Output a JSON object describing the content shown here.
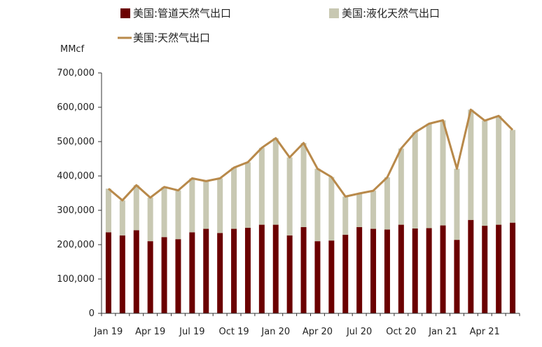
{
  "chart_data": {
    "type": "bar",
    "unit_label": "MMcf",
    "legend": [
      {
        "key": "pipeline",
        "label": "美国:管道天然气出口",
        "color": "#6b0000",
        "shape": "square"
      },
      {
        "key": "lng",
        "label": "美国:液化天然气出口",
        "color": "#c8c8b2",
        "shape": "square"
      },
      {
        "key": "total",
        "label": "美国:天然气出口",
        "color": "#b8894a",
        "shape": "line"
      }
    ],
    "legend_position": "top",
    "ylim": [
      0,
      700000
    ],
    "yticks": [
      "0",
      "100,000",
      "200,000",
      "300,000",
      "400,000",
      "500,000",
      "600,000",
      "700,000"
    ],
    "ytick_values": [
      0,
      100000,
      200000,
      300000,
      400000,
      500000,
      600000,
      700000
    ],
    "x": [
      "2019-01",
      "2019-02",
      "2019-03",
      "2019-04",
      "2019-05",
      "2019-06",
      "2019-07",
      "2019-08",
      "2019-09",
      "2019-10",
      "2019-11",
      "2019-12",
      "2020-01",
      "2020-02",
      "2020-03",
      "2020-04",
      "2020-05",
      "2020-06",
      "2020-07",
      "2020-08",
      "2020-09",
      "2020-10",
      "2020-11",
      "2020-12",
      "2021-01",
      "2021-02",
      "2021-03",
      "2021-04",
      "2021-05",
      "2021-06"
    ],
    "xtick_labels": [
      {
        "index": 0,
        "label": "Jan 19"
      },
      {
        "index": 3,
        "label": "Apr 19"
      },
      {
        "index": 6,
        "label": "Jul 19"
      },
      {
        "index": 9,
        "label": "Oct 19"
      },
      {
        "index": 12,
        "label": "Jan 20"
      },
      {
        "index": 15,
        "label": "Apr 20"
      },
      {
        "index": 18,
        "label": "Jul 20"
      },
      {
        "index": 21,
        "label": "Oct 20"
      },
      {
        "index": 24,
        "label": "Jan 21"
      },
      {
        "index": 27,
        "label": "Apr 21"
      }
    ],
    "series": [
      {
        "name": "美国:管道天然气出口",
        "type": "bar",
        "stack": true,
        "values": [
          236000,
          227000,
          242000,
          210000,
          222000,
          216000,
          236000,
          246000,
          234000,
          246000,
          249000,
          258000,
          258000,
          227000,
          251000,
          210000,
          212000,
          229000,
          251000,
          246000,
          244000,
          258000,
          247000,
          248000,
          256000,
          214000,
          272000,
          255000,
          258000,
          264000
        ]
      },
      {
        "name": "美国:液化天然气出口",
        "type": "bar",
        "stack": true,
        "values": [
          127000,
          102000,
          131000,
          127000,
          146000,
          142000,
          157000,
          139000,
          159000,
          178000,
          191000,
          224000,
          252000,
          227000,
          245000,
          211000,
          185000,
          111000,
          98000,
          111000,
          152000,
          222000,
          280000,
          304000,
          306000,
          207000,
          321000,
          306000,
          317000,
          270000
        ]
      },
      {
        "name": "美国:天然气出口",
        "type": "line",
        "values": [
          363000,
          329000,
          373000,
          337000,
          368000,
          358000,
          393000,
          385000,
          393000,
          424000,
          440000,
          482000,
          510000,
          454000,
          496000,
          421000,
          397000,
          340000,
          349000,
          357000,
          396000,
          480000,
          527000,
          552000,
          562000,
          421000,
          593000,
          561000,
          575000,
          534000
        ]
      }
    ],
    "grid": false
  }
}
